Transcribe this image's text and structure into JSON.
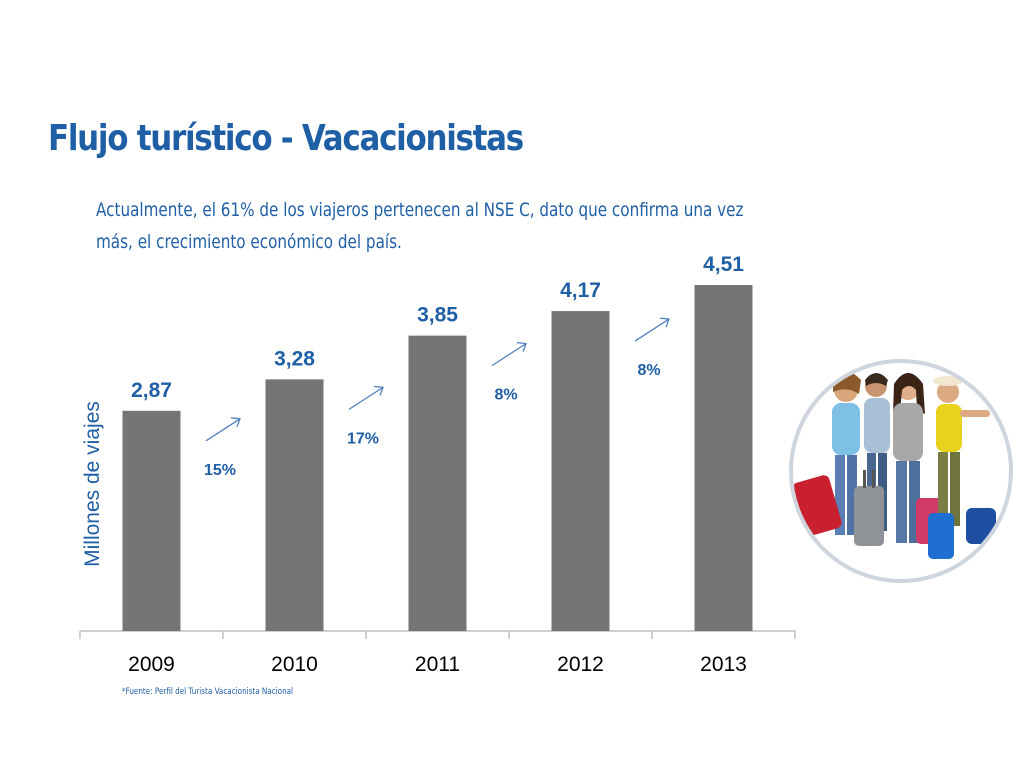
{
  "title": "Flujo turístico - Vacacionistas",
  "subtitle": "Actualmente, el 61% de los viajeros pertenecen al NSE C, dato que confirma una vez más, el crecimiento económico del país.",
  "source": "*Fuente: Perfil del Turista Vacacionista Nacional",
  "colors": {
    "accent": "#1f5fa6",
    "bar": "#757575",
    "axis": "#bfbfbf"
  },
  "photo": {
    "icon": "travelers-with-luggage-photo"
  },
  "chart_data": {
    "type": "bar",
    "title": "",
    "xlabel": "",
    "ylabel": "Millones de viajes",
    "categories": [
      "2009",
      "2010",
      "2011",
      "2012",
      "2013"
    ],
    "values": [
      2.87,
      3.28,
      3.85,
      4.17,
      4.51
    ],
    "value_labels": [
      "2,87",
      "3,28",
      "3,85",
      "4,17",
      "4,51"
    ],
    "growth_labels": [
      "15%",
      "17%",
      "8%",
      "8%"
    ],
    "ylim": [
      0,
      4.51
    ],
    "grid": false,
    "legend": "none"
  }
}
